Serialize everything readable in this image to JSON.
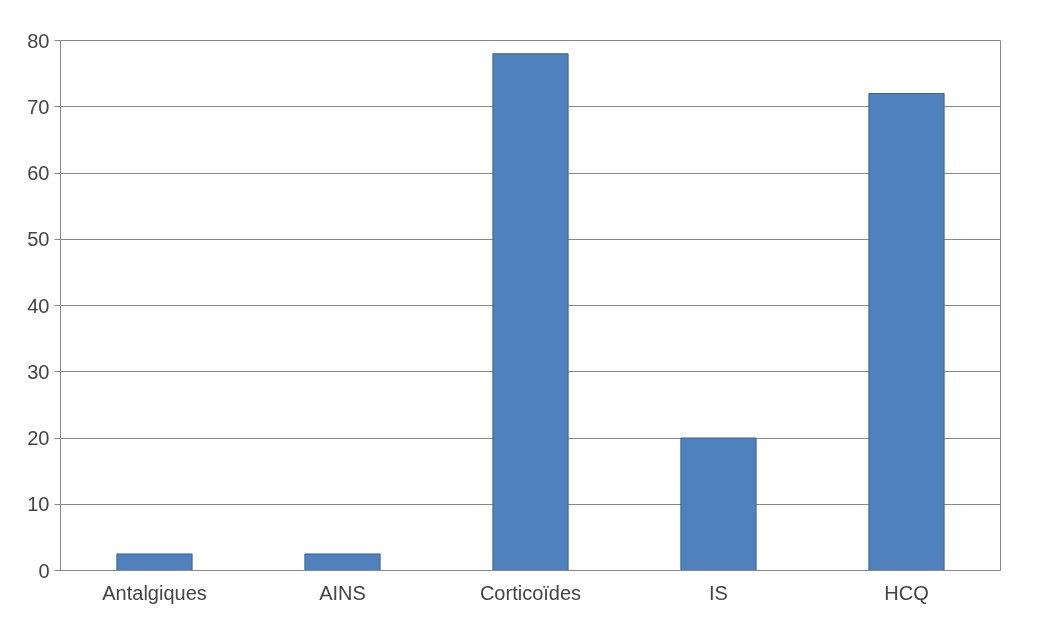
{
  "chart_data": {
    "type": "bar",
    "categories": [
      "Antalgiques",
      "AINS",
      "Corticoïdes",
      "IS",
      "HCQ"
    ],
    "values": [
      2.5,
      2.5,
      78,
      20,
      72
    ],
    "color": "#4f81bd",
    "ylim": [
      0,
      80
    ],
    "yticks": [
      0,
      10,
      20,
      30,
      40,
      50,
      60,
      70,
      80
    ],
    "grid": "y"
  }
}
